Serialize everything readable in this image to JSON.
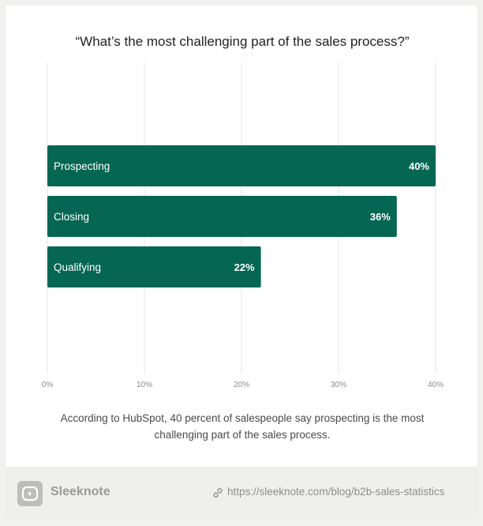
{
  "chart_data": {
    "type": "bar",
    "orientation": "horizontal",
    "title": "“What’s the most challenging part of the sales process?”",
    "categories": [
      "Prospecting",
      "Closing",
      "Qualifying"
    ],
    "values": [
      40,
      36,
      22
    ],
    "value_labels": [
      "40%",
      "36%",
      "22%"
    ],
    "xlim": [
      0,
      40
    ],
    "xticks": [
      0,
      10,
      20,
      30,
      40
    ],
    "xtick_labels": [
      "0%",
      "10%",
      "20%",
      "30%",
      "40%"
    ],
    "xlabel": "",
    "ylabel": "",
    "grid": true,
    "bar_color": "#056654",
    "grid_color": "#e4e4e4"
  },
  "caption": "According to HubSpot, 40 percent of salespeople say prospecting is the most challenging part of the sales process.",
  "footer": {
    "brand": "Sleeknote",
    "url": "https://sleeknote.com/blog/b2b-sales-statistics",
    "logo_icon": "sleeknote-logo-icon",
    "link_icon": "link-icon"
  }
}
